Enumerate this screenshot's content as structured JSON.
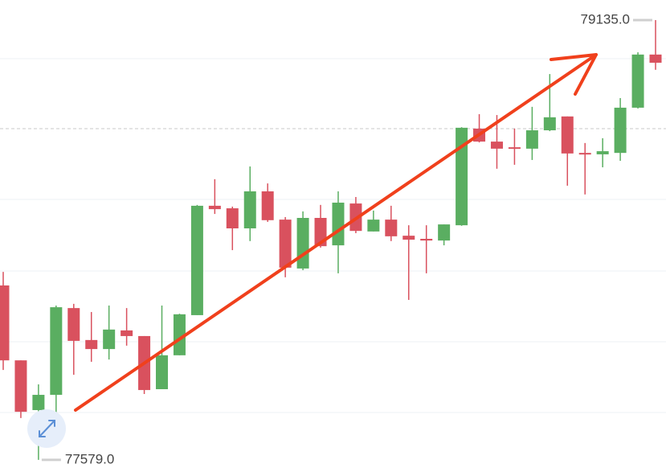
{
  "chart_data": {
    "type": "candlestick",
    "open": [
      78196,
      77931,
      77755,
      77809,
      78116,
      78003,
      77971,
      78037,
      78017,
      77829,
      77949,
      78091,
      78478,
      78469,
      78398,
      78529,
      78429,
      78256,
      78435,
      78338,
      78486,
      78387,
      78429,
      78372,
      78361,
      78355,
      78409,
      78751,
      78705,
      78685,
      78680,
      78745,
      78794,
      78665,
      78660,
      78665,
      78825,
      79013
    ],
    "high": [
      78244,
      77931,
      77846,
      78125,
      78131,
      78102,
      78125,
      78116,
      78017,
      78125,
      78096,
      78481,
      78572,
      78475,
      78617,
      78557,
      78438,
      78458,
      78481,
      78529,
      78509,
      78461,
      78478,
      78409,
      78409,
      78412,
      78756,
      78802,
      78799,
      78751,
      78828,
      78944,
      78794,
      78700,
      78717,
      78859,
      79021,
      79135
    ],
    "low": [
      77897,
      77727,
      77579,
      77727,
      77880,
      77926,
      77934,
      77983,
      77812,
      77829,
      77949,
      78091,
      78449,
      78321,
      78353,
      78421,
      78225,
      78250,
      78330,
      78239,
      78381,
      78387,
      78353,
      78145,
      78239,
      78338,
      78407,
      78702,
      78609,
      78623,
      78640,
      78742,
      78549,
      78518,
      78614,
      78637,
      78822,
      78959
    ],
    "close": [
      77931,
      77749,
      77809,
      78119,
      78000,
      77971,
      78040,
      78017,
      77826,
      77949,
      78094,
      78478,
      78466,
      78398,
      78529,
      78427,
      78259,
      78435,
      78335,
      78489,
      78389,
      78429,
      78370,
      78358,
      78355,
      78412,
      78754,
      78705,
      78680,
      78680,
      78745,
      78791,
      78663,
      78660,
      78671,
      78825,
      79013,
      78984
    ],
    "up_color": "#5aae61",
    "down_color": "#d9515e",
    "ylim": [
      77536,
      79206
    ],
    "annotations": [
      {
        "value": 79135,
        "label": "79135.0"
      },
      {
        "value": 77579,
        "label": "77579.0"
      }
    ]
  }
}
